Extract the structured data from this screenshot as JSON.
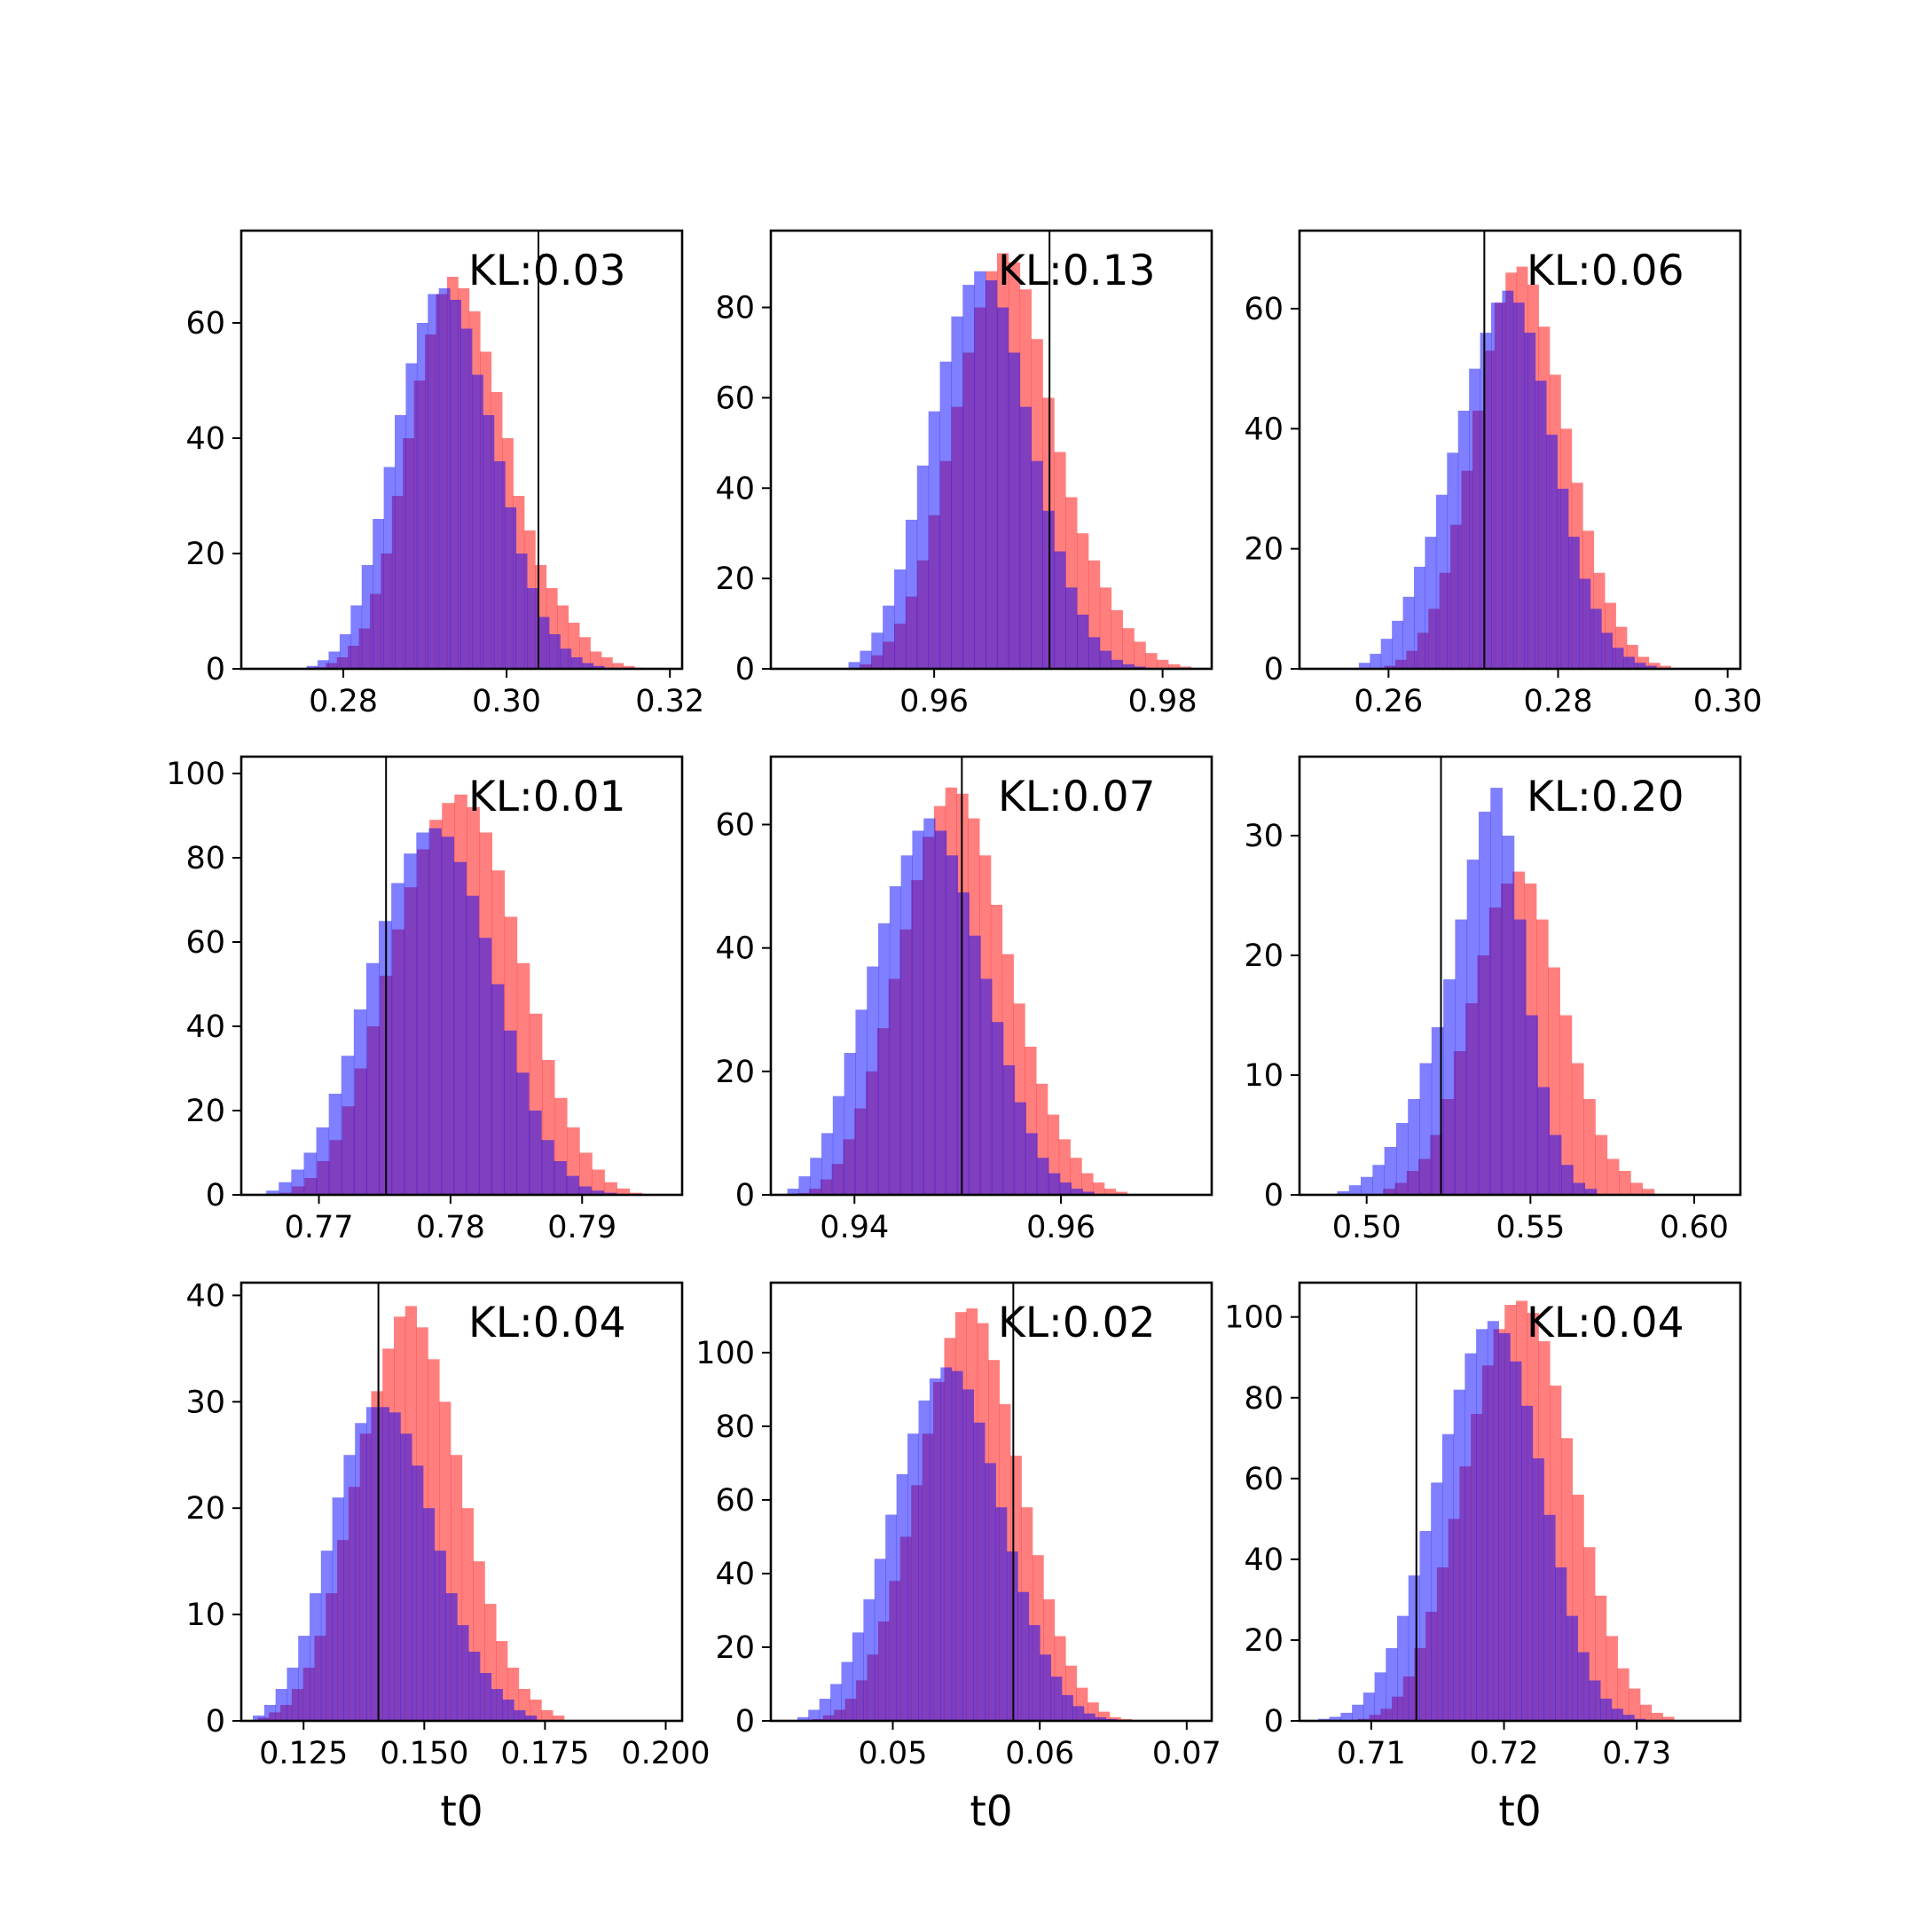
{
  "colors": {
    "red_hist": "#ff0000",
    "blue_hist": "#0000ff",
    "axes": "#000000",
    "marker_line": "#000000"
  },
  "chart_data": [
    {
      "type": "histogram",
      "annotation": "KL:0.03",
      "xlabel": "",
      "xlim": [
        0.2675,
        0.3215
      ],
      "ylim": [
        0,
        76
      ],
      "xticks": [
        0.28,
        0.3,
        0.32
      ],
      "xtick_labels": [
        "0.28",
        "0.30",
        "0.32"
      ],
      "yticks": [
        0,
        20,
        40,
        60
      ],
      "ytick_labels": [
        "0",
        "20",
        "40",
        "60"
      ],
      "marker_x": 0.3039,
      "series": [
        {
          "color": "red",
          "start": 0.2765,
          "width": 0.00135,
          "values": [
            0.3,
            1,
            2,
            4,
            7,
            13,
            20,
            30,
            40,
            50,
            58,
            65,
            68,
            66,
            62,
            55,
            48,
            40,
            30,
            24,
            18,
            14,
            11,
            8,
            5.5,
            3,
            2,
            1,
            0.5,
            0.2
          ]
        },
        {
          "color": "blue",
          "start": 0.2755,
          "width": 0.00135,
          "values": [
            0.5,
            1.5,
            3,
            6,
            11,
            18,
            26,
            35,
            44,
            53,
            60,
            65,
            66,
            64,
            59,
            51,
            44,
            36,
            28,
            20,
            14,
            9,
            6,
            3.5,
            2,
            1,
            0.5,
            0.2
          ]
        }
      ]
    },
    {
      "type": "histogram",
      "annotation": "KL:0.13",
      "xlabel": "",
      "xlim": [
        0.9457,
        0.9843
      ],
      "ylim": [
        0,
        97
      ],
      "xticks": [
        0.96,
        0.98
      ],
      "xtick_labels": [
        "0.96",
        "0.98"
      ],
      "yticks": [
        0,
        20,
        40,
        60,
        80
      ],
      "ytick_labels": [
        "0",
        "20",
        "40",
        "60",
        "80"
      ],
      "marker_x": 0.9701,
      "series": [
        {
          "color": "red",
          "start": 0.9535,
          "width": 0.001,
          "values": [
            1,
            3,
            6,
            10,
            16,
            24,
            34,
            46,
            58,
            70,
            80,
            88,
            92,
            90,
            84,
            73,
            60,
            48,
            38,
            30,
            24,
            18,
            13,
            9,
            6,
            3.5,
            2,
            1,
            0.5
          ]
        },
        {
          "color": "blue",
          "start": 0.9525,
          "width": 0.001,
          "values": [
            1.5,
            4,
            8,
            14,
            22,
            33,
            45,
            57,
            68,
            78,
            85,
            88,
            86,
            80,
            70,
            58,
            46,
            35,
            26,
            18,
            12,
            7,
            4,
            2,
            1,
            0.5
          ]
        }
      ]
    },
    {
      "type": "histogram",
      "annotation": "KL:0.06",
      "xlabel": "",
      "xlim": [
        0.2495,
        0.3015
      ],
      "ylim": [
        0,
        73
      ],
      "xticks": [
        0.26,
        0.28,
        0.3
      ],
      "xtick_labels": [
        "0.26",
        "0.28",
        "0.30"
      ],
      "yticks": [
        0,
        20,
        40,
        60
      ],
      "ytick_labels": [
        "0",
        "20",
        "40",
        "60"
      ],
      "marker_x": 0.2713,
      "series": [
        {
          "color": "red",
          "start": 0.2595,
          "width": 0.0013,
          "values": [
            0.5,
            1.5,
            3,
            6,
            10,
            16,
            24,
            33,
            43,
            53,
            61,
            66,
            67,
            64,
            57,
            49,
            40,
            31,
            23,
            16,
            11,
            7,
            4,
            2,
            1,
            0.5
          ]
        },
        {
          "color": "blue",
          "start": 0.2565,
          "width": 0.0013,
          "values": [
            1,
            2.5,
            5,
            8,
            12,
            17,
            22,
            29,
            36,
            43,
            50,
            56,
            61,
            63,
            61,
            56,
            48,
            39,
            30,
            22,
            15,
            10,
            6,
            3.5,
            2,
            1,
            0.5
          ]
        }
      ]
    },
    {
      "type": "histogram",
      "annotation": "KL:0.01",
      "xlabel": "",
      "xlim": [
        0.7641,
        0.7976
      ],
      "ylim": [
        0,
        104
      ],
      "xticks": [
        0.77,
        0.78,
        0.79
      ],
      "xtick_labels": [
        "0.77",
        "0.78",
        "0.79"
      ],
      "yticks": [
        0,
        20,
        40,
        60,
        80,
        100
      ],
      "ytick_labels": [
        "0",
        "20",
        "40",
        "60",
        "80",
        "100"
      ],
      "marker_x": 0.7751,
      "series": [
        {
          "color": "red",
          "start": 0.767,
          "width": 0.00095,
          "values": [
            0.5,
            2,
            4,
            8,
            13,
            21,
            30,
            40,
            52,
            63,
            73,
            82,
            89,
            93,
            95,
            92,
            86,
            77,
            66,
            55,
            43,
            32,
            23,
            16,
            10,
            6,
            3,
            1.5,
            0.5
          ]
        },
        {
          "color": "blue",
          "start": 0.766,
          "width": 0.00095,
          "values": [
            1,
            3,
            6,
            10,
            16,
            24,
            33,
            44,
            55,
            65,
            74,
            81,
            86,
            87,
            85,
            79,
            71,
            61,
            50,
            39,
            29,
            20,
            13,
            8,
            4.5,
            2,
            1,
            0.5
          ]
        }
      ]
    },
    {
      "type": "histogram",
      "annotation": "KL:0.07",
      "xlabel": "",
      "xlim": [
        0.9319,
        0.9746
      ],
      "ylim": [
        0,
        71
      ],
      "xticks": [
        0.94,
        0.96
      ],
      "xtick_labels": [
        "0.94",
        "0.96"
      ],
      "yticks": [
        0,
        20,
        40,
        60
      ],
      "ytick_labels": [
        "0",
        "20",
        "40",
        "60"
      ],
      "marker_x": 0.9504,
      "series": [
        {
          "color": "red",
          "start": 0.9345,
          "width": 0.0011,
          "values": [
            0.3,
            1,
            2.5,
            5,
            9,
            14,
            20,
            27,
            35,
            43,
            51,
            58,
            63,
            66,
            65,
            61,
            55,
            47,
            39,
            31,
            24,
            18,
            13,
            9,
            6,
            3.5,
            2,
            1,
            0.5
          ]
        },
        {
          "color": "blue",
          "start": 0.9335,
          "width": 0.0011,
          "values": [
            1,
            3,
            6,
            10,
            16,
            23,
            30,
            37,
            44,
            50,
            55,
            59,
            61,
            59,
            55,
            49,
            42,
            35,
            28,
            21,
            15,
            10,
            6,
            3.5,
            2,
            1,
            0.5
          ]
        }
      ]
    },
    {
      "type": "histogram",
      "annotation": "KL:0.20",
      "xlabel": "",
      "xlim": [
        0.4795,
        0.6141
      ],
      "ylim": [
        0,
        36.6
      ],
      "xticks": [
        0.5,
        0.55,
        0.6
      ],
      "xtick_labels": [
        "0.50",
        "0.55",
        "0.60"
      ],
      "yticks": [
        0,
        10,
        20,
        30
      ],
      "ytick_labels": [
        "0",
        "10",
        "20",
        "30"
      ],
      "marker_x": 0.5227,
      "series": [
        {
          "color": "red",
          "start": 0.505,
          "width": 0.0036,
          "values": [
            0.5,
            1,
            2,
            3,
            5,
            8,
            12,
            16,
            20,
            24,
            26,
            27,
            26,
            23,
            19,
            15,
            11,
            8,
            5,
            3,
            2,
            1,
            0.5
          ]
        },
        {
          "color": "blue",
          "start": 0.491,
          "width": 0.0036,
          "values": [
            0.3,
            0.8,
            1.5,
            2.5,
            4,
            6,
            8,
            11,
            14,
            18,
            23,
            28,
            32,
            34,
            30,
            23,
            15,
            9,
            5,
            2.5,
            1,
            0.5
          ]
        }
      ]
    },
    {
      "type": "histogram",
      "annotation": "KL:0.04",
      "xlabel": "t0",
      "xlim": [
        0.1121,
        0.2034
      ],
      "ylim": [
        0,
        41.2
      ],
      "xticks": [
        0.125,
        0.15,
        0.175,
        0.2
      ],
      "xtick_labels": [
        "0.125",
        "0.150",
        "0.175",
        "0.200"
      ],
      "yticks": [
        0,
        10,
        20,
        30,
        40
      ],
      "ytick_labels": [
        "0",
        "10",
        "20",
        "30",
        "40"
      ],
      "marker_x": 0.1405,
      "series": [
        {
          "color": "red",
          "start": 0.1155,
          "width": 0.00235,
          "values": [
            0.3,
            0.8,
            1.5,
            3,
            5,
            8,
            12,
            17,
            22,
            27,
            31,
            35,
            38,
            39,
            37,
            34,
            30,
            25,
            20,
            15,
            11,
            7.5,
            5,
            3,
            2,
            1,
            0.5
          ]
        },
        {
          "color": "blue",
          "start": 0.1145,
          "width": 0.00235,
          "values": [
            0.5,
            1.5,
            3,
            5,
            8,
            12,
            16,
            21,
            25,
            28,
            29.5,
            29.5,
            29,
            27,
            24,
            20,
            16,
            12,
            9,
            6.5,
            4.5,
            3,
            2,
            1,
            0.5
          ]
        }
      ]
    },
    {
      "type": "histogram",
      "annotation": "KL:0.02",
      "xlabel": "t0",
      "xlim": [
        0.0417,
        0.0717
      ],
      "ylim": [
        0,
        119
      ],
      "xticks": [
        0.05,
        0.06,
        0.07
      ],
      "xtick_labels": [
        "0.05",
        "0.06",
        "0.07"
      ],
      "yticks": [
        0,
        20,
        40,
        60,
        80,
        100
      ],
      "ytick_labels": [
        "0",
        "20",
        "40",
        "60",
        "80",
        "100"
      ],
      "marker_x": 0.0582,
      "series": [
        {
          "color": "red",
          "start": 0.0445,
          "width": 0.00075,
          "values": [
            0.5,
            1.5,
            3,
            6,
            11,
            18,
            27,
            38,
            50,
            64,
            78,
            92,
            104,
            111,
            112,
            108,
            98,
            86,
            72,
            58,
            45,
            33,
            23,
            15,
            9,
            5,
            2.5,
            1,
            0.5
          ]
        },
        {
          "color": "blue",
          "start": 0.0435,
          "width": 0.00075,
          "values": [
            1,
            3,
            6,
            10,
            16,
            24,
            33,
            44,
            56,
            67,
            78,
            87,
            93,
            96,
            95,
            90,
            81,
            70,
            58,
            46,
            35,
            26,
            18,
            12,
            7,
            4,
            2,
            1,
            0.5
          ]
        }
      ]
    },
    {
      "type": "histogram",
      "annotation": "KL:0.04",
      "xlabel": "t0",
      "xlim": [
        0.7046,
        0.7378
      ],
      "ylim": [
        0,
        108.5
      ],
      "xticks": [
        0.71,
        0.72,
        0.73
      ],
      "xtick_labels": [
        "0.71",
        "0.72",
        "0.73"
      ],
      "yticks": [
        0,
        20,
        40,
        60,
        80,
        100
      ],
      "ytick_labels": [
        "0",
        "20",
        "40",
        "60",
        "80",
        "100"
      ],
      "marker_x": 0.7134,
      "series": [
        {
          "color": "red",
          "start": 0.709,
          "width": 0.00085,
          "values": [
            0.5,
            1.5,
            3,
            6,
            11,
            18,
            27,
            38,
            50,
            63,
            76,
            88,
            97,
            103,
            104,
            101,
            94,
            83,
            70,
            56,
            43,
            31,
            21,
            13,
            8,
            4,
            2,
            1
          ]
        },
        {
          "color": "blue",
          "start": 0.706,
          "width": 0.00085,
          "values": [
            0.5,
            1,
            2,
            4,
            7,
            12,
            18,
            26,
            36,
            47,
            59,
            71,
            82,
            91,
            97,
            99,
            96,
            89,
            78,
            65,
            51,
            38,
            26,
            17,
            10,
            5.5,
            3,
            1.5,
            0.5
          ]
        }
      ]
    }
  ]
}
